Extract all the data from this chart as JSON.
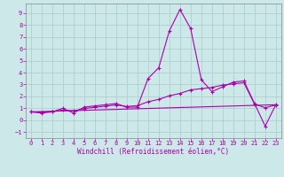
{
  "bg_color": "#cce8e8",
  "grid_color": "#aacccc",
  "line_color": "#aa00aa",
  "marker_color": "#aa00aa",
  "xlabel": "Windchill (Refroidissement éolien,°C)",
  "xlabel_color": "#aa00aa",
  "tick_color": "#aa00aa",
  "spine_color": "#888888",
  "xlim": [
    -0.5,
    23.5
  ],
  "ylim": [
    -1.5,
    9.8
  ],
  "xticks": [
    0,
    1,
    2,
    3,
    4,
    5,
    6,
    7,
    8,
    9,
    10,
    11,
    12,
    13,
    14,
    15,
    16,
    17,
    18,
    19,
    20,
    21,
    22,
    23
  ],
  "yticks": [
    -1,
    0,
    1,
    2,
    3,
    4,
    5,
    6,
    7,
    8,
    9
  ],
  "line1_x": [
    0,
    1,
    2,
    3,
    4,
    5,
    6,
    7,
    8,
    9,
    10,
    11,
    12,
    13,
    14,
    15,
    16,
    17,
    18,
    19,
    20,
    21,
    22,
    23
  ],
  "line1_y": [
    0.7,
    0.6,
    0.7,
    1.0,
    0.6,
    1.1,
    1.2,
    1.3,
    1.4,
    1.1,
    1.1,
    3.5,
    4.4,
    7.5,
    9.3,
    7.7,
    3.4,
    2.4,
    2.8,
    3.2,
    3.3,
    1.4,
    -0.5,
    1.3
  ],
  "line2_x": [
    0,
    1,
    2,
    3,
    4,
    5,
    6,
    7,
    8,
    9,
    10,
    11,
    12,
    13,
    14,
    15,
    16,
    17,
    18,
    19,
    20,
    21,
    22,
    23
  ],
  "line2_y": [
    0.7,
    0.68,
    0.72,
    0.85,
    0.78,
    0.98,
    1.08,
    1.18,
    1.28,
    1.15,
    1.22,
    1.55,
    1.75,
    2.05,
    2.25,
    2.55,
    2.65,
    2.75,
    2.95,
    3.05,
    3.15,
    1.35,
    1.05,
    1.28
  ],
  "line3_x": [
    0,
    23
  ],
  "line3_y": [
    0.7,
    1.3
  ],
  "xlabel_fontsize": 5.5,
  "tick_fontsize": 5.0,
  "linewidth": 0.8,
  "markersize": 3.0,
  "markeredgewidth": 0.8
}
